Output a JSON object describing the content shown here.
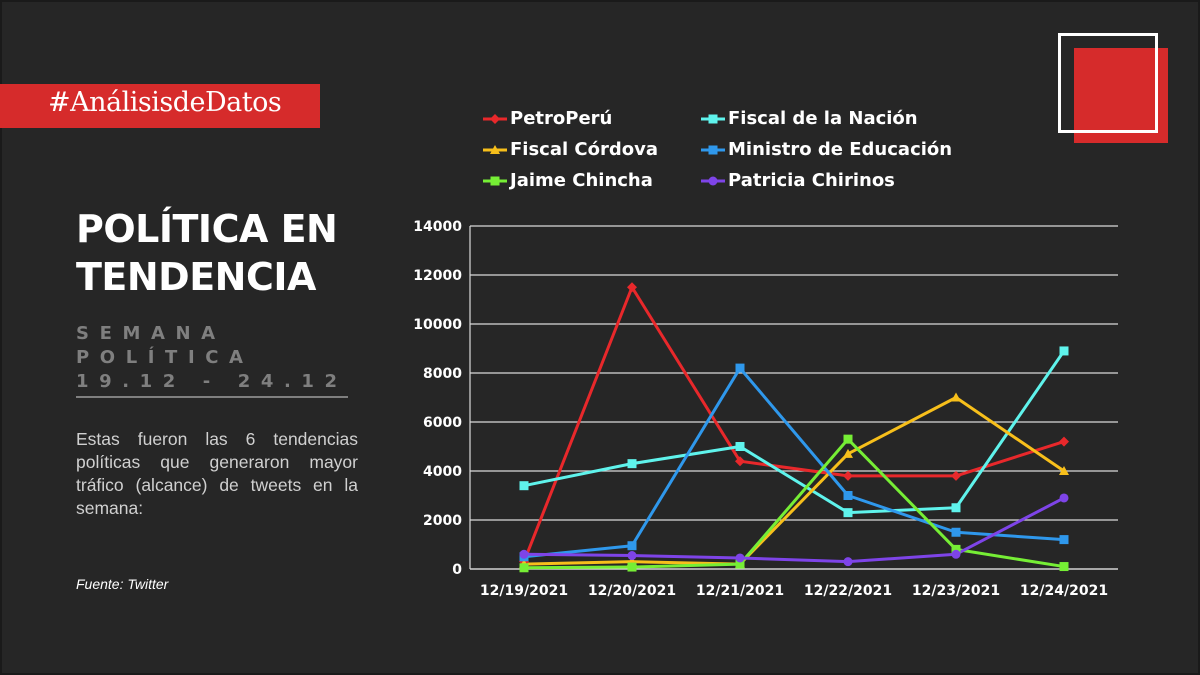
{
  "hashtag": "#AnálisisdeDatos",
  "title_lines": [
    "POLÍTICA EN",
    "TENDENCIA"
  ],
  "subtitle": {
    "line1": "SEMANA",
    "line2": "POLÍTICA",
    "dates": "19.12 - 24.12"
  },
  "description": "Estas fueron las 6 tendencias políticas que generaron mayor tráfico (alcance) de tweets en la semana:",
  "source": "Fuente: Twitter",
  "colors": {
    "background": "#262626",
    "accent": "#d62b2b"
  },
  "chart_data": {
    "type": "line",
    "categories": [
      "12/19/2021",
      "12/20/2021",
      "12/21/2021",
      "12/22/2021",
      "12/23/2021",
      "12/24/2021"
    ],
    "ylim": [
      0,
      14000
    ],
    "yticks": [
      0,
      2000,
      4000,
      6000,
      8000,
      10000,
      12000,
      14000
    ],
    "grid": true,
    "legend_position": "top",
    "series": [
      {
        "name": "PetroPerú",
        "color": "#e8282b",
        "marker": "diamond",
        "values": [
          300,
          11500,
          4400,
          3800,
          3800,
          5200
        ]
      },
      {
        "name": "Fiscal de la Nación",
        "color": "#5ff3ec",
        "marker": "square",
        "values": [
          3400,
          4300,
          5000,
          2300,
          2500,
          8900
        ]
      },
      {
        "name": "Fiscal Córdova",
        "color": "#f7bf1b",
        "marker": "triangle",
        "values": [
          200,
          300,
          200,
          4700,
          7000,
          4000
        ]
      },
      {
        "name": "Ministro de Educación",
        "color": "#2f98ec",
        "marker": "square",
        "values": [
          500,
          950,
          8200,
          3000,
          1500,
          1200
        ]
      },
      {
        "name": "Jaime Chincha",
        "color": "#76ee35",
        "marker": "square",
        "values": [
          50,
          80,
          200,
          5300,
          800,
          100
        ]
      },
      {
        "name": "Patricia Chirinos",
        "color": "#7e44e8",
        "marker": "circle",
        "values": [
          600,
          550,
          450,
          300,
          600,
          2900
        ]
      }
    ]
  }
}
